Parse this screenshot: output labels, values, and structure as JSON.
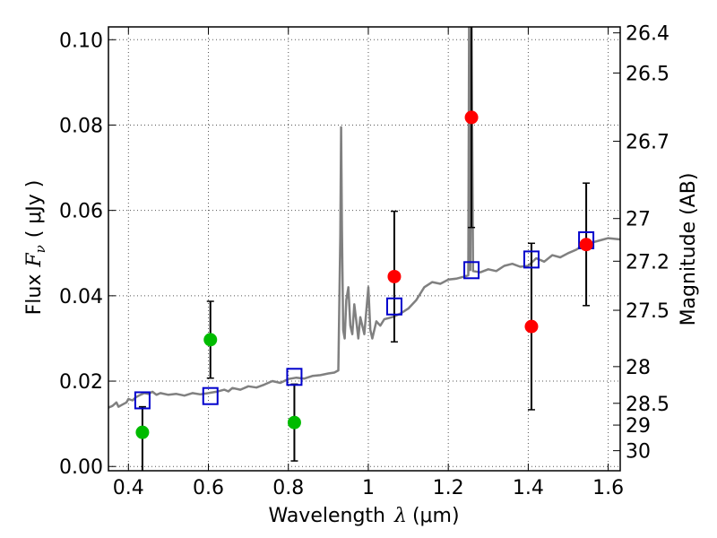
{
  "chart_data": {
    "type": "scatter",
    "xlabel": "Wavelength",
    "xlabel_symbol": "λ",
    "xlabel_unit": "(μm)",
    "ylabel": "Flux",
    "ylabel_symbol": "F",
    "ylabel_subscript": "ν",
    "ylabel_unit": "( μJy )",
    "ylabel_right": "Magnitude (AB)",
    "xlim": [
      0.35,
      1.63
    ],
    "ylim": [
      -0.001,
      0.103
    ],
    "grid": true,
    "x_ticks": [
      {
        "value": 0.4,
        "label": "0.4"
      },
      {
        "value": 0.6,
        "label": "0.6"
      },
      {
        "value": 0.8,
        "label": "0.8"
      },
      {
        "value": 1.0,
        "label": "1"
      },
      {
        "value": 1.2,
        "label": "1.2"
      },
      {
        "value": 1.4,
        "label": "1.4"
      },
      {
        "value": 1.6,
        "label": "1.6"
      }
    ],
    "y_ticks": [
      {
        "value": 0.0,
        "label": "0.00"
      },
      {
        "value": 0.02,
        "label": "0.02"
      },
      {
        "value": 0.04,
        "label": "0.04"
      },
      {
        "value": 0.06,
        "label": "0.06"
      },
      {
        "value": 0.08,
        "label": "0.08"
      },
      {
        "value": 0.1,
        "label": "0.10"
      }
    ],
    "magnitude_ticks": [
      {
        "flux": 0.1016,
        "label": "26.4"
      },
      {
        "flux": 0.0922,
        "label": "26.5"
      },
      {
        "flux": 0.0762,
        "label": "26.7"
      },
      {
        "flux": 0.0581,
        "label": "27"
      },
      {
        "flux": 0.0481,
        "label": "27.2"
      },
      {
        "flux": 0.0366,
        "label": "27.5"
      },
      {
        "flux": 0.0234,
        "label": "28"
      },
      {
        "flux": 0.0148,
        "label": "28.5"
      },
      {
        "flux": 0.0097,
        "label": "29"
      },
      {
        "flux": 0.0037,
        "label": "30"
      }
    ],
    "colors": {
      "model": "#808080",
      "detection": "#ff0000",
      "non_detection": "#00bb00",
      "model_photometry": "#0000cc",
      "errorbar": "#000000",
      "grid": "#555555"
    },
    "model_spectrum": [
      [
        0.35,
        0.0138
      ],
      [
        0.36,
        0.0142
      ],
      [
        0.37,
        0.015
      ],
      [
        0.375,
        0.014
      ],
      [
        0.385,
        0.0145
      ],
      [
        0.395,
        0.015
      ],
      [
        0.4,
        0.0158
      ],
      [
        0.41,
        0.0155
      ],
      [
        0.42,
        0.0163
      ],
      [
        0.43,
        0.0168
      ],
      [
        0.44,
        0.0172
      ],
      [
        0.45,
        0.017
      ],
      [
        0.46,
        0.0175
      ],
      [
        0.47,
        0.0168
      ],
      [
        0.48,
        0.0172
      ],
      [
        0.5,
        0.0168
      ],
      [
        0.52,
        0.017
      ],
      [
        0.54,
        0.0166
      ],
      [
        0.56,
        0.0172
      ],
      [
        0.58,
        0.0169
      ],
      [
        0.6,
        0.0172
      ],
      [
        0.62,
        0.0175
      ],
      [
        0.64,
        0.018
      ],
      [
        0.65,
        0.0176
      ],
      [
        0.66,
        0.0184
      ],
      [
        0.68,
        0.018
      ],
      [
        0.7,
        0.0188
      ],
      [
        0.72,
        0.0185
      ],
      [
        0.74,
        0.0192
      ],
      [
        0.76,
        0.02
      ],
      [
        0.78,
        0.0196
      ],
      [
        0.8,
        0.0205
      ],
      [
        0.82,
        0.0208
      ],
      [
        0.84,
        0.0206
      ],
      [
        0.86,
        0.0212
      ],
      [
        0.88,
        0.0214
      ],
      [
        0.9,
        0.0218
      ],
      [
        0.915,
        0.022
      ],
      [
        0.925,
        0.0225
      ],
      [
        0.93,
        0.054
      ],
      [
        0.932,
        0.0795
      ],
      [
        0.934,
        0.056
      ],
      [
        0.937,
        0.032
      ],
      [
        0.941,
        0.03
      ],
      [
        0.945,
        0.039
      ],
      [
        0.95,
        0.042
      ],
      [
        0.955,
        0.033
      ],
      [
        0.96,
        0.031
      ],
      [
        0.965,
        0.038
      ],
      [
        0.97,
        0.034
      ],
      [
        0.975,
        0.03
      ],
      [
        0.98,
        0.035
      ],
      [
        0.99,
        0.031
      ],
      [
        1.0,
        0.042
      ],
      [
        1.005,
        0.032
      ],
      [
        1.01,
        0.03
      ],
      [
        1.02,
        0.034
      ],
      [
        1.03,
        0.033
      ],
      [
        1.04,
        0.0345
      ],
      [
        1.06,
        0.035
      ],
      [
        1.08,
        0.0358
      ],
      [
        1.1,
        0.037
      ],
      [
        1.12,
        0.039
      ],
      [
        1.14,
        0.042
      ],
      [
        1.16,
        0.0432
      ],
      [
        1.18,
        0.0428
      ],
      [
        1.2,
        0.0438
      ],
      [
        1.22,
        0.044
      ],
      [
        1.24,
        0.0445
      ],
      [
        1.25,
        0.0448
      ],
      [
        1.252,
        0.103
      ],
      [
        1.255,
        0.046
      ],
      [
        1.258,
        0.103
      ],
      [
        1.262,
        0.0458
      ],
      [
        1.28,
        0.0455
      ],
      [
        1.3,
        0.0462
      ],
      [
        1.32,
        0.0458
      ],
      [
        1.34,
        0.047
      ],
      [
        1.36,
        0.0475
      ],
      [
        1.38,
        0.0468
      ],
      [
        1.4,
        0.047
      ],
      [
        1.42,
        0.0488
      ],
      [
        1.44,
        0.048
      ],
      [
        1.46,
        0.0495
      ],
      [
        1.48,
        0.049
      ],
      [
        1.5,
        0.05
      ],
      [
        1.52,
        0.0508
      ],
      [
        1.54,
        0.052
      ],
      [
        1.56,
        0.0525
      ],
      [
        1.58,
        0.053
      ],
      [
        1.6,
        0.0535
      ],
      [
        1.63,
        0.0532
      ]
    ],
    "detections": [
      {
        "x": 1.065,
        "y": 0.0445,
        "err_low": 0.0292,
        "err_high": 0.0598
      },
      {
        "x": 1.258,
        "y": 0.0818,
        "err_low": 0.056,
        "err_high": 0.103
      },
      {
        "x": 1.408,
        "y": 0.0328,
        "err_low": 0.0133,
        "err_high": 0.0523
      },
      {
        "x": 1.545,
        "y": 0.052,
        "err_low": 0.0377,
        "err_high": 0.0664
      }
    ],
    "non_detections": [
      {
        "x": 0.435,
        "y": 0.008,
        "err_low": -0.001,
        "err_high": 0.014
      },
      {
        "x": 0.605,
        "y": 0.0297,
        "err_low": 0.0207,
        "err_high": 0.0387
      },
      {
        "x": 0.815,
        "y": 0.0103,
        "err_low": 0.0013,
        "err_high": 0.0193
      }
    ],
    "model_photometry": [
      {
        "x": 0.435,
        "y": 0.0155
      },
      {
        "x": 0.605,
        "y": 0.0165
      },
      {
        "x": 0.815,
        "y": 0.021
      },
      {
        "x": 1.065,
        "y": 0.0375
      },
      {
        "x": 1.258,
        "y": 0.046
      },
      {
        "x": 1.408,
        "y": 0.0485
      },
      {
        "x": 1.545,
        "y": 0.053
      }
    ]
  }
}
